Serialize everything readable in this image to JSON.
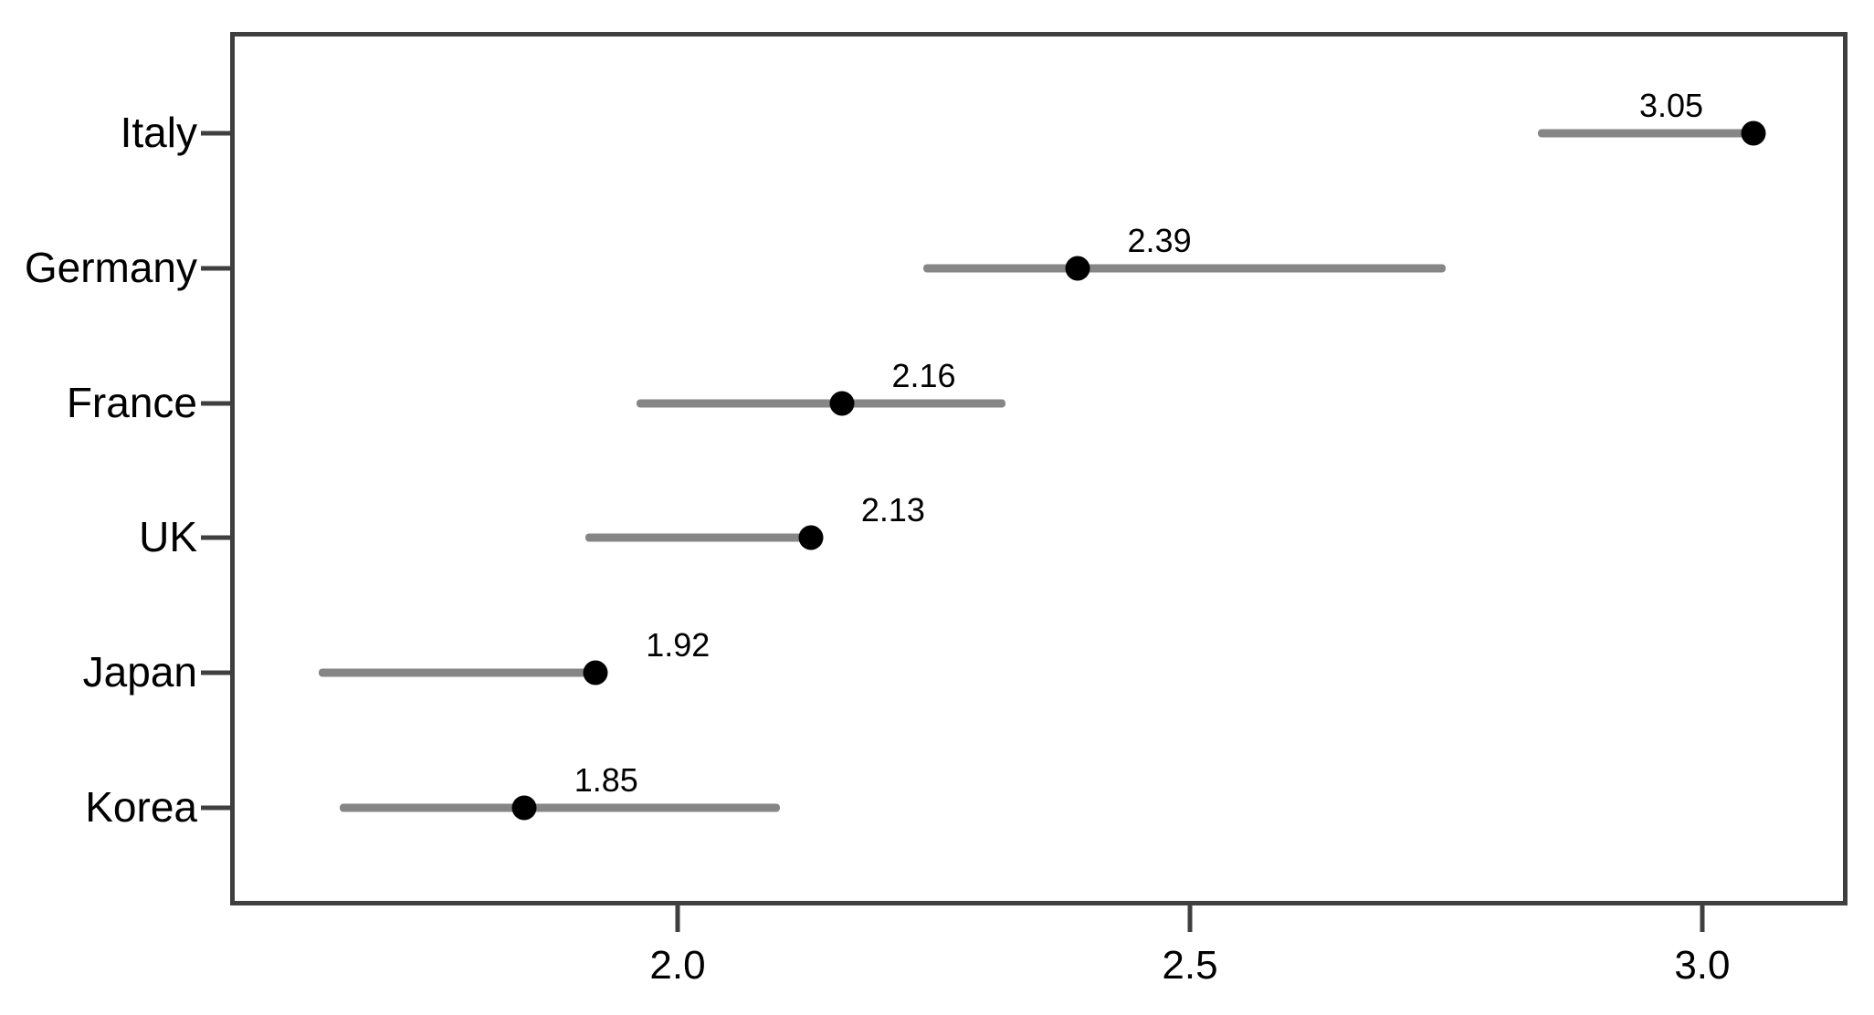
{
  "figure": {
    "title": "",
    "background": "#ffffff"
  },
  "chart_data": {
    "type": "scatter",
    "variant": "dot-plot-with-ranges",
    "title": "",
    "xlabel": "",
    "ylabel": "",
    "grid": false,
    "legend": null,
    "categories": [
      "Italy",
      "Germany",
      "France",
      "UK",
      "Japan",
      "Korea"
    ],
    "series": [
      {
        "name": "point-estimate",
        "values": [
          3.05,
          2.39,
          2.16,
          2.13,
          1.92,
          1.85
        ]
      },
      {
        "name": "range-low",
        "values": [
          2.84,
          2.24,
          1.96,
          1.91,
          1.65,
          1.67
        ]
      },
      {
        "name": "range-high",
        "values": [
          3.05,
          2.75,
          2.32,
          2.13,
          1.92,
          2.1
        ]
      }
    ],
    "value_labels": [
      "3.05",
      "2.39",
      "2.16",
      "2.13",
      "1.92",
      "1.85"
    ],
    "value_label_side": [
      "left",
      "right",
      "right",
      "right",
      "right",
      "right"
    ],
    "x_ticks": [
      2.0,
      2.5,
      3.0
    ],
    "x_tick_labels": [
      "2.0",
      "2.5",
      "3.0"
    ],
    "xlim": [
      1.565,
      3.14
    ],
    "colors": {
      "range_line": "#868686",
      "point": "#000000",
      "frame": "#3f3f3f",
      "tick": "#3f3f3f",
      "text": "#000000"
    }
  }
}
